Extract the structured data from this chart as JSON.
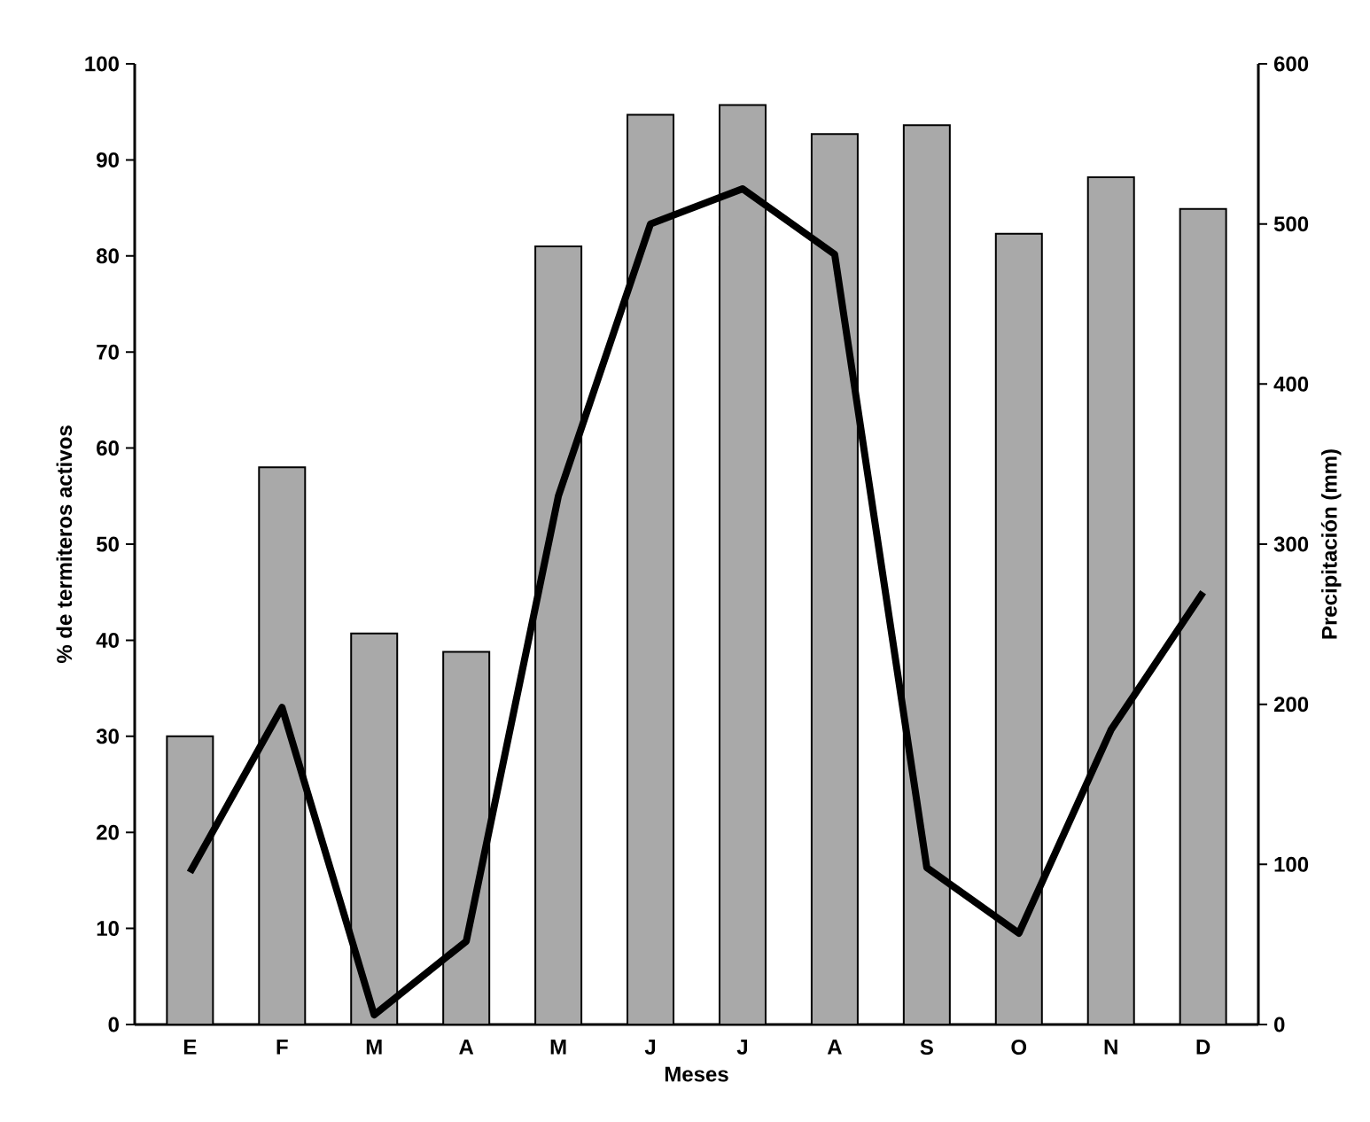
{
  "chart_data": {
    "type": "bar",
    "xlabel": "Meses",
    "ylabel": "% de termiteros activos",
    "y2label": "Precipitación (mm)",
    "categories": [
      "E",
      "F",
      "M",
      "A",
      "M",
      "J",
      "J",
      "A",
      "S",
      "O",
      "N",
      "D"
    ],
    "series": [
      {
        "color": "#a9a9a9",
        "values": [
          30,
          58,
          40.7,
          38.8,
          81,
          94.7,
          95.7,
          92.7,
          93.6,
          82.3,
          88.2,
          84.9
        ]
      },
      {
        "type": "line",
        "axis": "y2",
        "color": "#000000",
        "values": [
          95,
          198,
          6,
          52,
          330,
          500,
          522,
          481,
          98,
          57,
          184,
          270
        ]
      }
    ],
    "ylim": [
      0,
      100
    ],
    "yticks": [
      0,
      10,
      20,
      30,
      40,
      50,
      60,
      70,
      80,
      90,
      100
    ],
    "y2lim": [
      0,
      600
    ],
    "y2ticks": [
      0,
      100,
      200,
      300,
      400,
      500,
      600
    ],
    "grid": false,
    "legend": false,
    "marker": "none",
    "line_style": "solid"
  }
}
